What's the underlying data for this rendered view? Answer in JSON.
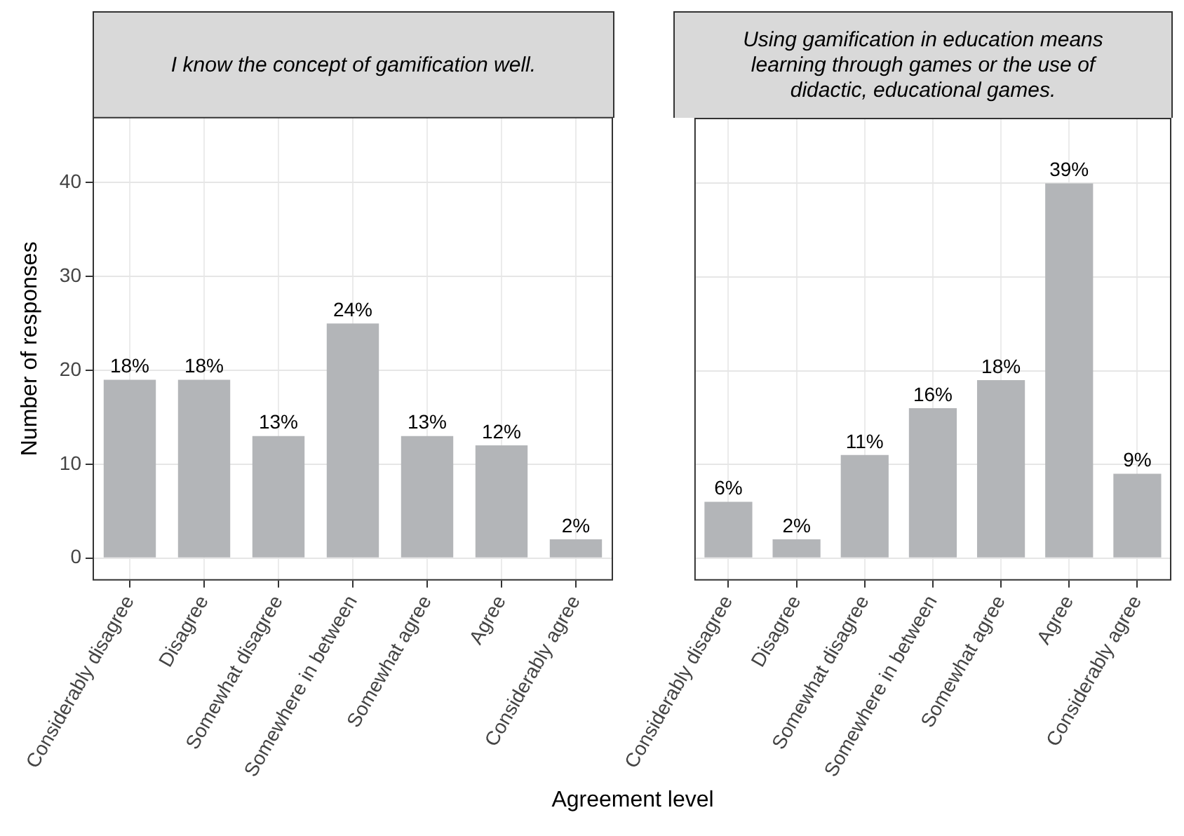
{
  "chart_data": [
    {
      "type": "bar",
      "title": "I know the concept of gamification well.",
      "xlabel": "Agreement level",
      "ylabel": "Number of responses",
      "categories": [
        "Considerably disagree",
        "Disagree",
        "Somewhat disagree",
        "Somewhere in between",
        "Somewhat agree",
        "Agree",
        "Considerably agree"
      ],
      "values": [
        19,
        19,
        13,
        25,
        13,
        12,
        2
      ],
      "color": "#b3b5b8",
      "ylim": [
        -2.4,
        47
      ],
      "yticks": [
        0,
        10,
        20,
        30,
        40
      ],
      "grid": true,
      "annotations": [
        {
          "text": "18%",
          "x": "Considerably disagree",
          "y": 19
        },
        {
          "text": "18%",
          "x": "Disagree",
          "y": 19
        },
        {
          "text": "13%",
          "x": "Somewhat disagree",
          "y": 13
        },
        {
          "text": "24%",
          "x": "Somewhere in between",
          "y": 25
        },
        {
          "text": "13%",
          "x": "Somewhat agree",
          "y": 13
        },
        {
          "text": "12%",
          "x": "Agree",
          "y": 12
        },
        {
          "text": "2%",
          "x": "Considerably agree",
          "y": 2
        }
      ]
    },
    {
      "type": "bar",
      "title": "Using gamification in education means learning through games or the use of didactic, educational games.",
      "categories": [
        "Considerably disagree",
        "Disagree",
        "Somewhat disagree",
        "Somewhere in between",
        "Somewhat agree",
        "Agree",
        "Considerably agree"
      ],
      "values": [
        6,
        2,
        11,
        16,
        19,
        40,
        9
      ],
      "color": "#b3b5b8",
      "ylim": [
        -2.4,
        47
      ],
      "yticks": [
        0,
        10,
        20,
        30,
        40
      ],
      "grid": true,
      "tick_labels": "x",
      "annotations": [
        {
          "text": "6%",
          "x": "Considerably disagree",
          "y": 6
        },
        {
          "text": "2%",
          "x": "Disagree",
          "y": 2
        },
        {
          "text": "11%",
          "x": "Somewhat disagree",
          "y": 11
        },
        {
          "text": "16%",
          "x": "Somewhere in between",
          "y": 16
        },
        {
          "text": "18%",
          "x": "Somewhat agree",
          "y": 19
        },
        {
          "text": "39%",
          "x": "Agree",
          "y": 40
        },
        {
          "text": "9%",
          "x": "Considerably agree",
          "y": 9
        }
      ]
    }
  ]
}
